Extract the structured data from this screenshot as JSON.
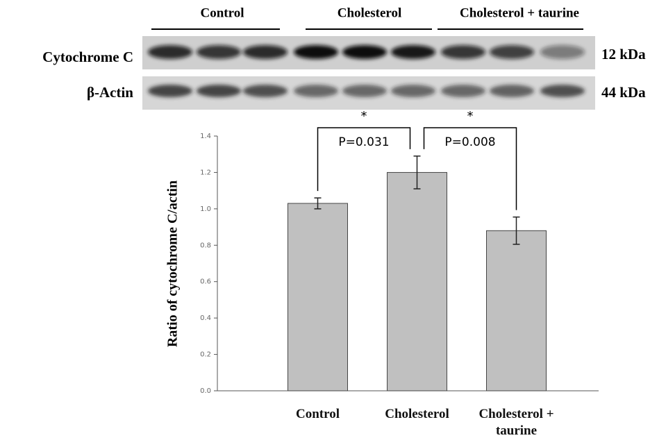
{
  "blot": {
    "groups": [
      "Control",
      "Cholesterol",
      "Cholesterol + taurine"
    ],
    "rows": [
      {
        "label": "Cytochrome C",
        "size": "12 kDa"
      },
      {
        "label": "β-Actin",
        "size": "44 kDa"
      }
    ]
  },
  "chart_data": {
    "type": "bar",
    "ylabel": "Ratio of cytochrome C/actin",
    "categories": [
      "Control",
      "Cholesterol",
      "Cholesterol + taurine"
    ],
    "values": [
      1.03,
      1.2,
      0.88
    ],
    "errors": [
      0.03,
      0.09,
      0.075
    ],
    "color": "#c0c0c0",
    "ylim": [
      0,
      1.4
    ],
    "yticks": [
      {
        "value": 0,
        "label": "0.0"
      },
      0.2,
      0.4,
      0.6,
      0.8,
      {
        "value": 1,
        "label": "1.0"
      },
      1.2,
      1.4
    ],
    "annotations": [
      {
        "star": "*",
        "text": "P=0.031"
      },
      {
        "star": "*",
        "text": "P=0.008"
      }
    ]
  }
}
